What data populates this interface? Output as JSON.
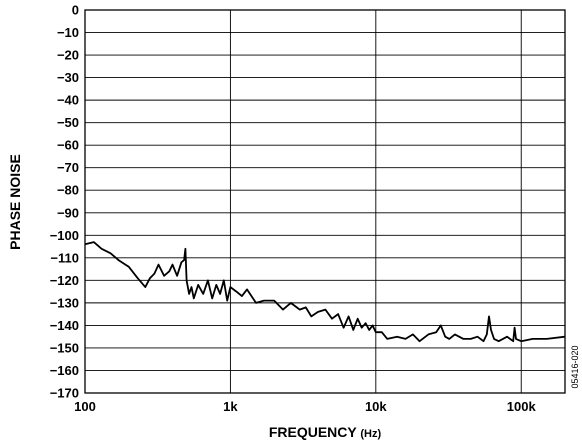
{
  "chart_data": {
    "type": "line",
    "title": "",
    "xlabel": "FREQUENCY",
    "xlabel_unit": "(Hz)",
    "ylabel": "PHASE NOISE",
    "x_scale": "log",
    "xlim": [
      100,
      200000
    ],
    "ylim": [
      -170,
      0
    ],
    "x_ticks": [
      {
        "value": 100,
        "label": "100"
      },
      {
        "value": 1000,
        "label": "1k"
      },
      {
        "value": 10000,
        "label": "10k"
      },
      {
        "value": 100000,
        "label": "100k"
      }
    ],
    "y_ticks": [
      0,
      -10,
      -20,
      -30,
      -40,
      -50,
      -60,
      -70,
      -80,
      -90,
      -100,
      -110,
      -120,
      -130,
      -140,
      -150,
      -160,
      -170
    ],
    "y_tick_labels": [
      "0",
      "−10",
      "−20",
      "−30",
      "−40",
      "−50",
      "−60",
      "−70",
      "−80",
      "−90",
      "−100",
      "−110",
      "−120",
      "−130",
      "−140",
      "−150",
      "−160",
      "−170"
    ],
    "grid": true,
    "figure_id": "05416-020",
    "series": [
      {
        "color": "#000000",
        "x": [
          100,
          115,
          130,
          150,
          170,
          200,
          230,
          260,
          280,
          300,
          320,
          350,
          380,
          400,
          430,
          460,
          480,
          490,
          500,
          520,
          540,
          560,
          600,
          650,
          700,
          750,
          800,
          850,
          900,
          950,
          1000,
          1100,
          1200,
          1300,
          1500,
          1700,
          2000,
          2300,
          2600,
          3000,
          3300,
          3600,
          4000,
          4500,
          5000,
          5500,
          6000,
          6500,
          7000,
          7500,
          8000,
          8500,
          9000,
          9500,
          10000,
          11000,
          12000,
          14000,
          16000,
          18000,
          20000,
          23000,
          26000,
          28000,
          30000,
          32000,
          35000,
          40000,
          45000,
          50000,
          55000,
          58000,
          60000,
          62000,
          65000,
          70000,
          80000,
          88000,
          90000,
          92000,
          100000,
          120000,
          150000,
          200000
        ],
        "y": [
          -104,
          -103,
          -106,
          -108,
          -111,
          -114,
          -119,
          -123,
          -119,
          -117,
          -113,
          -118,
          -116,
          -113,
          -118,
          -112,
          -111,
          -106,
          -120,
          -126,
          -123,
          -128,
          -122,
          -126,
          -120,
          -128,
          -122,
          -126,
          -120,
          -129,
          -123,
          -125,
          -127,
          -124,
          -130,
          -129,
          -129,
          -133,
          -130,
          -133,
          -132,
          -136,
          -134,
          -133,
          -137,
          -135,
          -141,
          -136,
          -142,
          -137,
          -141,
          -139,
          -142,
          -140,
          -143,
          -143,
          -146,
          -145,
          -146,
          -144,
          -147,
          -144,
          -143,
          -140,
          -145,
          -146,
          -144,
          -146,
          -146,
          -145,
          -147,
          -144,
          -136,
          -142,
          -146,
          -147,
          -145,
          -147,
          -141,
          -146,
          -147,
          -146,
          -146,
          -145
        ]
      }
    ]
  }
}
